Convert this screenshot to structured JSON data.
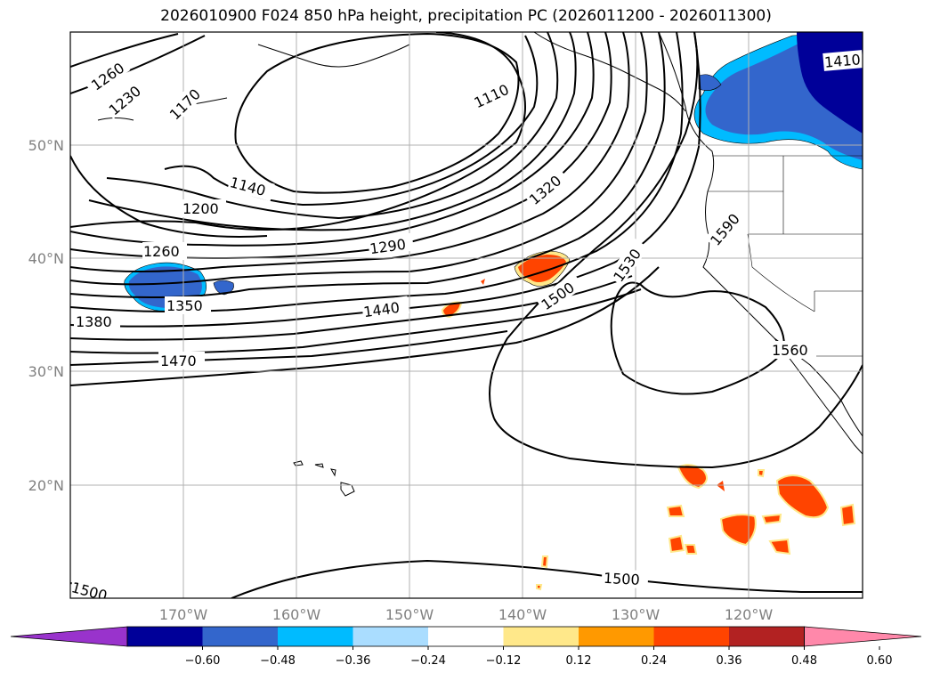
{
  "title": "2026010900 F024 850 hPa height, precipitation PC (2026011200 - 2026011300)",
  "map": {
    "lat_labels": [
      "50°N",
      "40°N",
      "30°N",
      "20°N"
    ],
    "lon_labels": [
      "170°W",
      "160°W",
      "150°W",
      "140°W",
      "130°W",
      "120°W"
    ],
    "contour_labels": [
      "1260",
      "1230",
      "1170",
      "1110",
      "1140",
      "1200",
      "1260",
      "1290",
      "1320",
      "1350",
      "1380",
      "1440",
      "1470",
      "1500",
      "1530",
      "1590",
      "1560",
      "1410",
      "1500",
      "1500"
    ]
  },
  "colorbar": {
    "ticks": [
      "−0.60",
      "−0.48",
      "−0.36",
      "−0.24",
      "−0.12",
      "0.12",
      "0.24",
      "0.36",
      "0.48",
      "0.60"
    ],
    "colors": [
      "#9933cc",
      "#000099",
      "#3366cc",
      "#00bbff",
      "#aaddff",
      "#ffffff",
      "#ffe88a",
      "#ff9900",
      "#ff4400",
      "#b22222",
      "#ff88aa"
    ]
  }
}
